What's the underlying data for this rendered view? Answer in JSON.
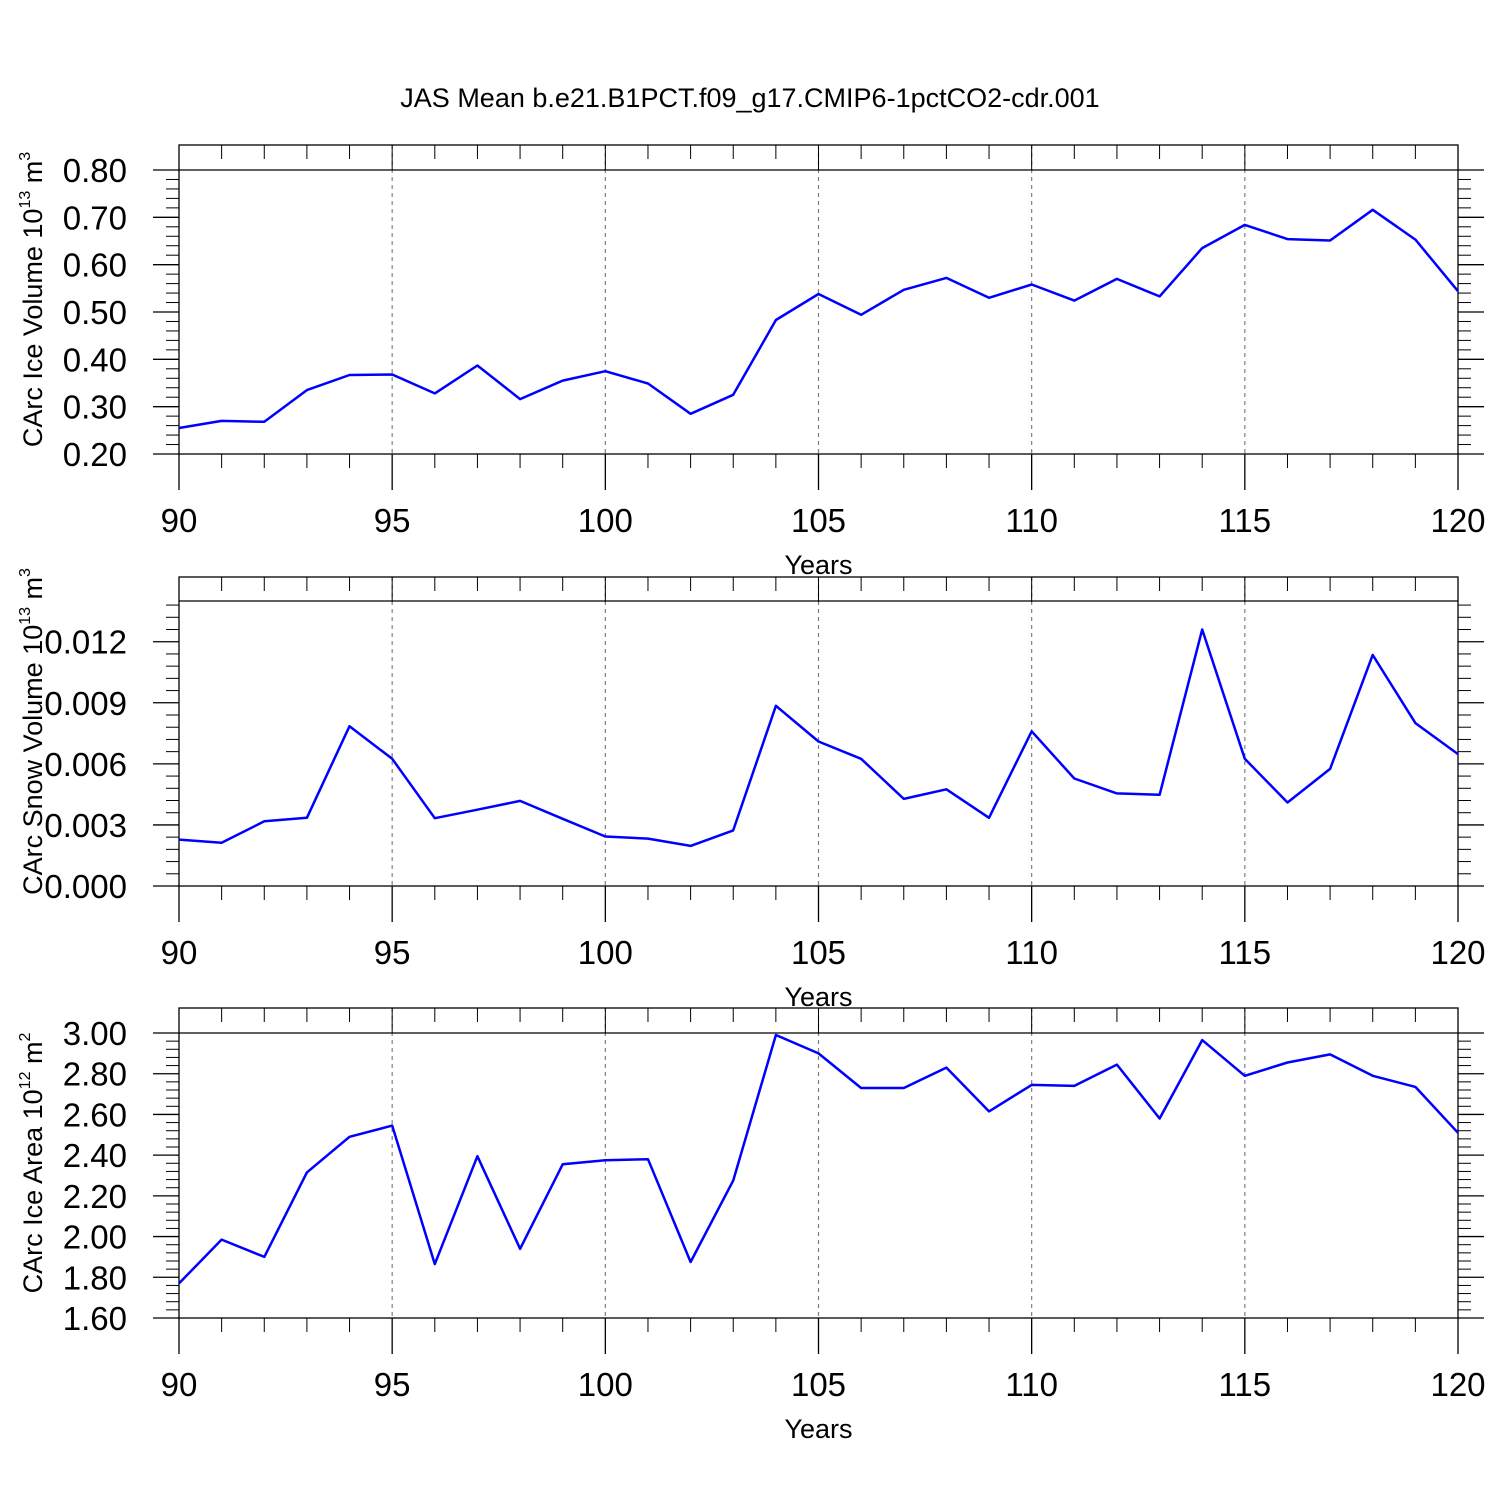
{
  "title": "JAS Mean b.e21.B1PCT.f09_g17.CMIP6-1pctCO2-cdr.001",
  "colors": {
    "line": "#0000ff",
    "axis": "#000000",
    "grid": "#808080",
    "background": "#ffffff"
  },
  "chart_data": [
    {
      "type": "line",
      "xlabel": "Years",
      "ylabel_text": "CArc Ice Volume 10",
      "ylabel_exp": "13",
      "ylabel_unit": "m",
      "ylabel_unit_exp": "3",
      "xlim": [
        90,
        120
      ],
      "ylim": [
        0.2,
        0.8
      ],
      "y_ticks": [
        "0.20",
        "0.30",
        "0.40",
        "0.50",
        "0.60",
        "0.70",
        "0.80"
      ],
      "x_ticks": [
        "90",
        "95",
        "100",
        "105",
        "110",
        "115",
        "120"
      ],
      "vertical_grid": true,
      "x": [
        90,
        91,
        92,
        93,
        94,
        95,
        96,
        97,
        98,
        99,
        100,
        101,
        102,
        103,
        104,
        105,
        106,
        107,
        108,
        109,
        110,
        111,
        112,
        113,
        114,
        115,
        116,
        117,
        118,
        119,
        120
      ],
      "values": [
        0.255,
        0.27,
        0.268,
        0.335,
        0.367,
        0.368,
        0.328,
        0.387,
        0.316,
        0.355,
        0.375,
        0.349,
        0.285,
        0.325,
        0.483,
        0.538,
        0.494,
        0.547,
        0.572,
        0.53,
        0.558,
        0.524,
        0.57,
        0.533,
        0.635,
        0.684,
        0.654,
        0.651,
        0.716,
        0.653,
        0.544
      ]
    },
    {
      "type": "line",
      "xlabel": "Years",
      "ylabel_text": "CArc Snow Volume 10",
      "ylabel_exp": "13",
      "ylabel_unit": "m",
      "ylabel_unit_exp": "3",
      "xlim": [
        90,
        120
      ],
      "ylim": [
        0.0,
        0.014
      ],
      "y_ticks": [
        "0.000",
        "0.003",
        "0.006",
        "0.009",
        "0.012"
      ],
      "x_ticks": [
        "90",
        "95",
        "100",
        "105",
        "110",
        "115",
        "120"
      ],
      "vertical_grid": true,
      "x": [
        90,
        91,
        92,
        93,
        94,
        95,
        96,
        97,
        98,
        99,
        100,
        101,
        102,
        103,
        104,
        105,
        106,
        107,
        108,
        109,
        110,
        111,
        112,
        113,
        114,
        115,
        116,
        117,
        118,
        119,
        120
      ],
      "values": [
        0.00228,
        0.00212,
        0.00318,
        0.00335,
        0.00785,
        0.00625,
        0.00333,
        0.00375,
        0.00418,
        0.0033,
        0.00243,
        0.00233,
        0.00197,
        0.00273,
        0.00885,
        0.0071,
        0.00625,
        0.00428,
        0.00475,
        0.00335,
        0.0076,
        0.00528,
        0.00455,
        0.00448,
        0.0126,
        0.00625,
        0.0041,
        0.00575,
        0.01135,
        0.008,
        0.00648
      ]
    },
    {
      "type": "line",
      "xlabel": "Years",
      "ylabel_text": "CArc Ice Area 10",
      "ylabel_exp": "12",
      "ylabel_unit": "m",
      "ylabel_unit_exp": "2",
      "xlim": [
        90,
        120
      ],
      "ylim": [
        1.6,
        3.0
      ],
      "y_ticks": [
        "1.60",
        "1.80",
        "2.00",
        "2.20",
        "2.40",
        "2.60",
        "2.80",
        "3.00"
      ],
      "x_ticks": [
        "90",
        "95",
        "100",
        "105",
        "110",
        "115",
        "120"
      ],
      "vertical_grid": true,
      "x": [
        90,
        91,
        92,
        93,
        94,
        95,
        96,
        97,
        98,
        99,
        100,
        101,
        102,
        103,
        104,
        105,
        106,
        107,
        108,
        109,
        110,
        111,
        112,
        113,
        114,
        115,
        116,
        117,
        118,
        119,
        120
      ],
      "values": [
        1.77,
        1.985,
        1.9,
        2.315,
        2.49,
        2.545,
        1.865,
        2.395,
        1.94,
        2.355,
        2.375,
        2.38,
        1.875,
        2.275,
        2.99,
        2.9,
        2.73,
        2.73,
        2.83,
        2.615,
        2.745,
        2.74,
        2.845,
        2.58,
        2.965,
        2.79,
        2.855,
        2.895,
        2.79,
        2.735,
        2.51
      ]
    }
  ]
}
